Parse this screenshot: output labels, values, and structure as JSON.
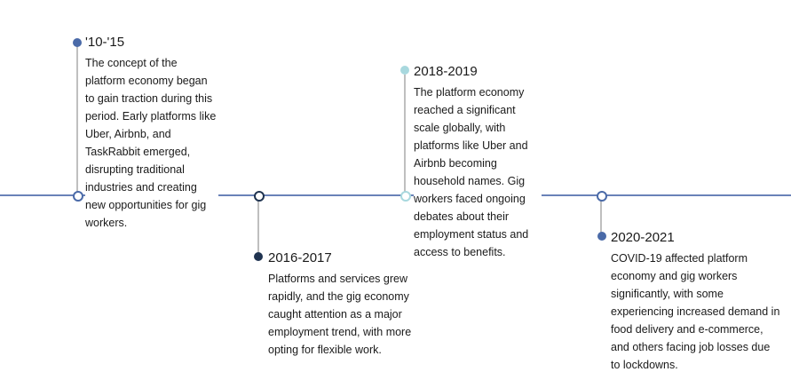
{
  "colors": {
    "axis": "#6a82b8",
    "stem": "#bfbfbf",
    "steel_blue": "#4a6aa8",
    "dark_navy": "#1f3350",
    "light_cyan": "#a8d8de"
  },
  "events": [
    {
      "title": "'10-'15",
      "description": "The concept of the platform economy began to gain traction during this period. Early platforms like Uber, Airbnb, and TaskRabbit emerged, disrupting traditional industries and creating new opportunities for gig workers.",
      "color": "#4a6aa8"
    },
    {
      "title": "2016-2017",
      "description": "Platforms and services grew rapidly, and the gig economy caught attention as a major employment trend, with more opting for flexible work.",
      "color": "#1f3350"
    },
    {
      "title": "2018-2019",
      "description": "The platform economy reached a significant scale globally, with platforms like Uber and Airbnb becoming household names. Gig workers faced ongoing debates about their employment status and access to benefits.",
      "color": "#a8d8de"
    },
    {
      "title": "2020-2021",
      "description": "COVID-19 affected platform economy and gig workers significantly, with some experiencing increased demand in food delivery and e-commerce, and others facing job losses due to lockdowns.",
      "color": "#4a6aa8"
    }
  ]
}
